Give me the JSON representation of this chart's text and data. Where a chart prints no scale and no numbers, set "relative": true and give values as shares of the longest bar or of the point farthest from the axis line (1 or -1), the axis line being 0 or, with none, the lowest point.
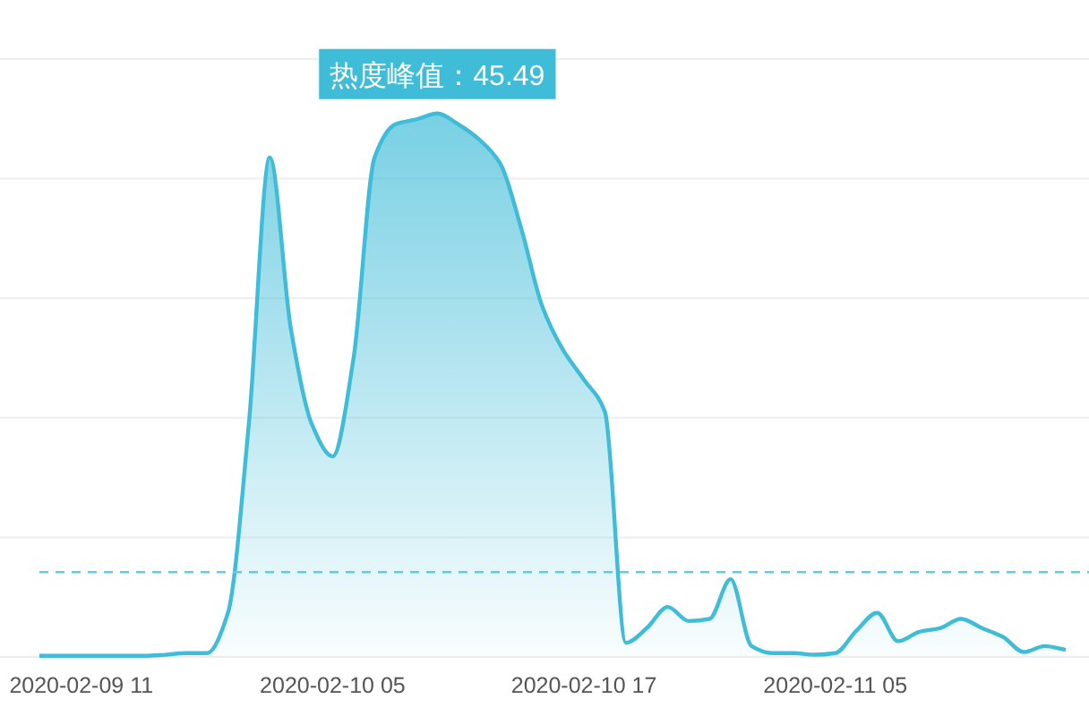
{
  "chart_data": {
    "type": "area",
    "relative": true,
    "categories": [
      null,
      null,
      "2020-02-09 11",
      null,
      null,
      null,
      null,
      null,
      null,
      null,
      null,
      null,
      null,
      null,
      "2020-02-10 05",
      null,
      null,
      null,
      null,
      null,
      null,
      null,
      null,
      null,
      null,
      null,
      "2020-02-10 17",
      null,
      null,
      null,
      null,
      null,
      null,
      null,
      null,
      null,
      null,
      null,
      "2020-02-11 05",
      null,
      null,
      null,
      null,
      null,
      null,
      null,
      null,
      null,
      null,
      null
    ],
    "series": [
      {
        "color": "#3fbcd8",
        "values": [
          0.002,
          0.002,
          0.002,
          0.002,
          0.002,
          0.002,
          0.004,
          0.007,
          0.007,
          0.081,
          0.429,
          0.919,
          0.605,
          0.429,
          0.369,
          0.55,
          0.919,
          0.98,
          0.989,
          1,
          0.98,
          0.952,
          0.908,
          0.789,
          0.646,
          0.565,
          0.51,
          0.451,
          0.026,
          0.053,
          0.092,
          0.066,
          0.07,
          0.143,
          0.02,
          0.007,
          0.007,
          0.004,
          0.007,
          0.048,
          0.081,
          0.029,
          0.046,
          0.053,
          0.07,
          0.053,
          0.037,
          0.009,
          0.02,
          0.013
        ]
      }
    ],
    "grid": "y",
    "ref_lines": [
      {
        "axis": "y",
        "value": 0.156,
        "color": "#6cc6dd",
        "line_style": "dashed"
      }
    ],
    "annotations": [
      "热度峰值：45.49"
    ]
  }
}
